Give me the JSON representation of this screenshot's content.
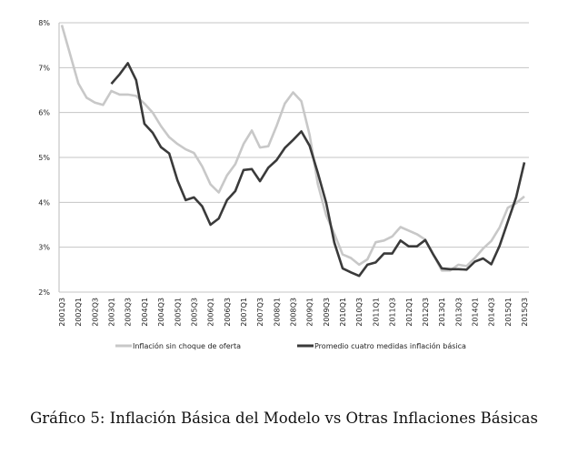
{
  "chart_data": {
    "type": "line",
    "title": "",
    "xlabel": "",
    "ylabel": "",
    "ylim": [
      2,
      8
    ],
    "y_ticks": [
      "2%",
      "3%",
      "4%",
      "5%",
      "6%",
      "7%",
      "8%"
    ],
    "y_tick_values": [
      2,
      3,
      4,
      5,
      6,
      7,
      8
    ],
    "grid": true,
    "legend_position": "bottom",
    "x_start": "2001Q3",
    "x_tick_labels": [
      "2001Q3",
      "2002Q1",
      "2002Q3",
      "2003Q1",
      "2003Q3",
      "2004Q1",
      "2004Q3",
      "2005Q1",
      "2005Q3",
      "2006Q1",
      "2006Q3",
      "2007Q1",
      "2007Q3",
      "2008Q1",
      "2008Q3",
      "2009Q1",
      "2009Q3",
      "2010Q1",
      "2010Q3",
      "2011Q1",
      "2011Q3",
      "2012Q1",
      "2012Q3",
      "2013Q1",
      "2013Q3",
      "2014Q1",
      "2014Q3",
      "2015Q1",
      "2015Q3"
    ],
    "series": [
      {
        "name": "Inflación sin choque de oferta",
        "color": "#c8c8c8",
        "values": [
          7.95,
          7.3,
          6.65,
          6.33,
          6.22,
          6.17,
          6.48,
          6.4,
          6.4,
          6.37,
          6.2,
          6.0,
          5.7,
          5.45,
          5.3,
          5.18,
          5.1,
          4.8,
          4.4,
          4.22,
          4.6,
          4.85,
          5.3,
          5.6,
          5.22,
          5.25,
          5.7,
          6.2,
          6.45,
          6.25,
          5.5,
          4.4,
          3.71,
          3.3,
          2.84,
          2.76,
          2.61,
          2.73,
          3.11,
          3.15,
          3.24,
          3.45,
          3.37,
          3.29,
          3.17,
          2.83,
          2.48,
          2.48,
          2.61,
          2.58,
          2.76,
          2.97,
          3.14,
          3.44,
          3.88,
          3.98,
          4.13
        ]
      },
      {
        "name": "Promedio cuatro medidas inflación básica",
        "color": "#3a3a3a",
        "values": [
          null,
          null,
          null,
          null,
          null,
          null,
          6.64,
          6.85,
          7.1,
          6.72,
          5.75,
          5.55,
          5.23,
          5.09,
          4.49,
          4.05,
          4.11,
          3.91,
          3.5,
          3.64,
          4.05,
          4.25,
          4.72,
          4.74,
          4.47,
          4.77,
          4.94,
          5.21,
          5.39,
          5.58,
          5.26,
          4.65,
          3.99,
          3.1,
          2.53,
          2.44,
          2.36,
          2.61,
          2.66,
          2.86,
          2.86,
          3.15,
          3.02,
          3.02,
          3.16,
          2.83,
          2.53,
          2.51,
          2.51,
          2.5,
          2.68,
          2.75,
          2.62,
          3.03,
          3.57,
          4.11,
          4.89
        ]
      }
    ]
  },
  "caption": "Gráfico 5: Inflación Básica del Modelo vs Otras Inflaciones Básicas"
}
